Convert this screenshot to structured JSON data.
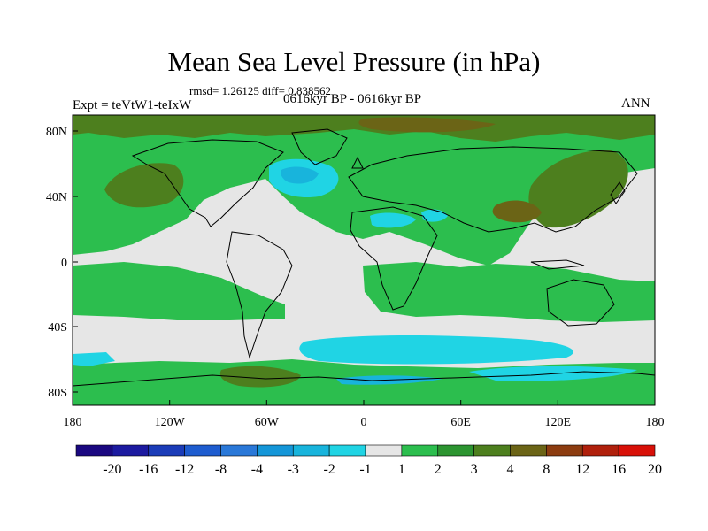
{
  "title": "Mean Sea Level Pressure (in hPa)",
  "stats": "rmsd= 1.26125 diff= 0.838562",
  "experiment": "Expt = teVtW1-teIxW",
  "period": "0616kyr BP - 0616kyr BP",
  "season": "ANN",
  "axes": {
    "y_ticks": [
      "80N",
      "40N",
      "0",
      "40S",
      "80S"
    ],
    "x_ticks": [
      "180",
      "120W",
      "60W",
      "0",
      "60E",
      "120E",
      "180"
    ]
  },
  "colorbar": {
    "labels": [
      "-20",
      "-16",
      "-12",
      "-8",
      "-4",
      "-3",
      "-2",
      "-1",
      "1",
      "2",
      "3",
      "4",
      "8",
      "12",
      "16",
      "20"
    ],
    "colors": [
      "#1a0880",
      "#1c1aa0",
      "#1b3cb8",
      "#1e5ccf",
      "#2a78d8",
      "#1496d8",
      "#18b4dc",
      "#20d4e4",
      "#e6e6e6",
      "#2cbe4e",
      "#2c9430",
      "#4d7f1e",
      "#6b6416",
      "#8c3c10",
      "#b0200c",
      "#d81008"
    ]
  },
  "colors": {
    "ocean": "#e6e6e6",
    "land_outline": "#000000",
    "positive_small": "#2cbe4e",
    "positive_medium": "#4d7f1e",
    "positive_large": "#6b6416",
    "negative_small": "#20d4e4",
    "negative_medium": "#18b4dc"
  }
}
